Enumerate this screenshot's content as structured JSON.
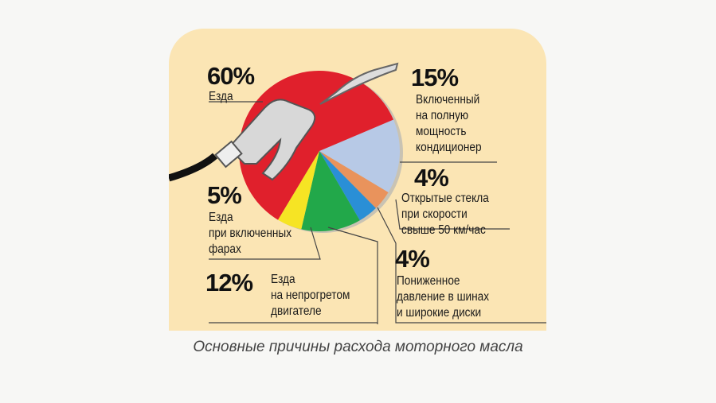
{
  "chart_data": {
    "type": "pie",
    "title": "",
    "caption": "Основные причины расхода моторного масла",
    "slices": [
      {
        "label_pct": "15%",
        "value": 15,
        "label": [
          "Включенный",
          "на полную",
          "мощность",
          "кондиционер"
        ],
        "color": "#b7c9e6"
      },
      {
        "label_pct": "4%",
        "value": 4,
        "label": [
          "Открытые стекла",
          "при скорости",
          "свыше 50 км/час"
        ],
        "color": "#e9935c"
      },
      {
        "label_pct": "4%",
        "value": 4,
        "label": [
          "Пониженное",
          "давление в шинах",
          "и широкие диски"
        ],
        "color": "#2a8fd6"
      },
      {
        "label_pct": "12%",
        "value": 12,
        "label": [
          "Езда",
          "на непрогретом",
          "двигателе"
        ],
        "color": "#22a84a"
      },
      {
        "label_pct": "5%",
        "value": 5,
        "label": [
          "Езда",
          "при включенных",
          "фарах"
        ],
        "color": "#f6e424"
      },
      {
        "label_pct": "60%",
        "value": 60,
        "label": [
          "Езда"
        ],
        "color": "#e0202c"
      }
    ]
  }
}
